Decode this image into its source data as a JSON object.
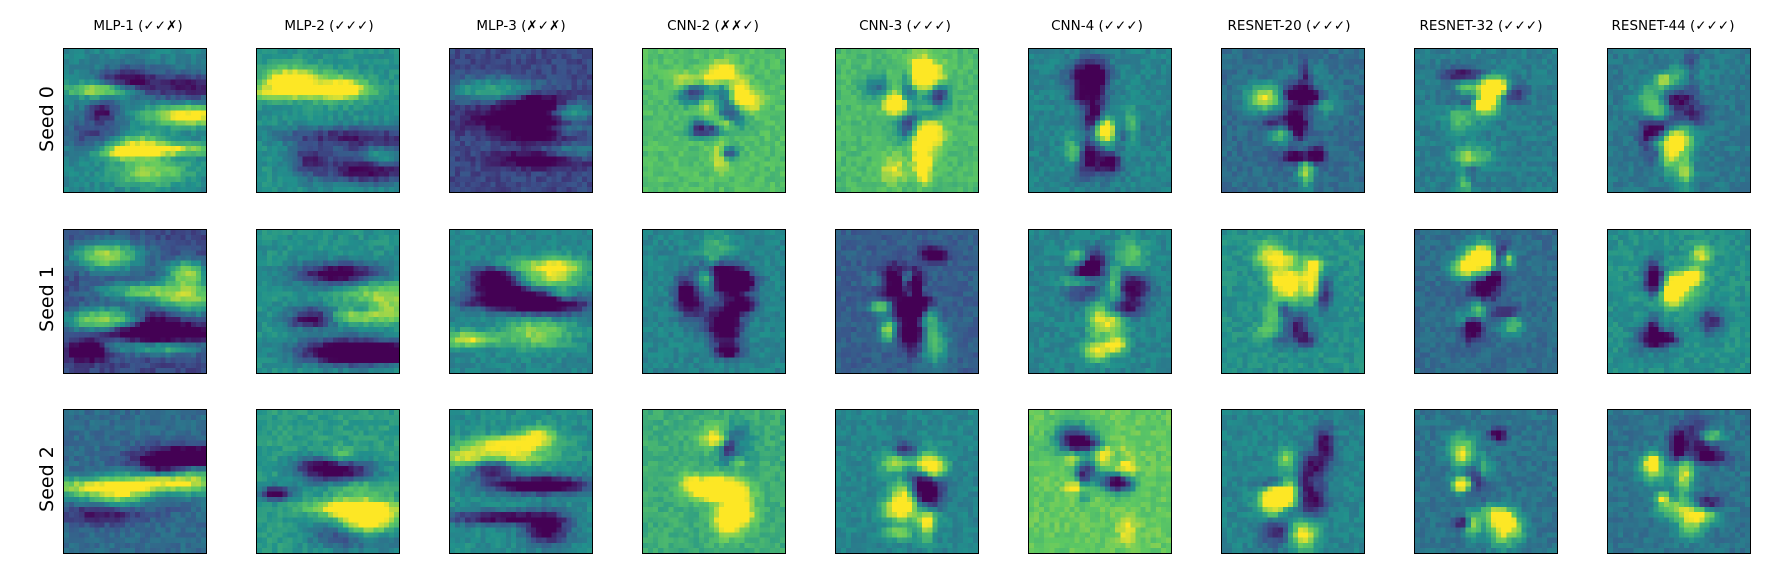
{
  "figure": {
    "column_titles": [
      "MLP-1 (✓✓✗)",
      "MLP-2 (✓✓✓)",
      "MLP-3 (✗✓✗)",
      "CNN-2 (✗✗✓)",
      "CNN-3 (✓✓✓)",
      "CNN-4 (✓✓✓)",
      "RESNET-20 (✓✓✓)",
      "RESNET-32 (✓✓✓)",
      "RESNET-44 (✓✓✓)"
    ],
    "row_labels": [
      "Seed 0",
      "Seed 1",
      "Seed 2"
    ],
    "colormap": "viridis",
    "colors": {
      "viridis_dark": "#440154",
      "viridis_blue": "#3b528b",
      "viridis_teal": "#21918c",
      "viridis_green": "#5ec962",
      "viridis_yellow": "#fde725"
    }
  }
}
